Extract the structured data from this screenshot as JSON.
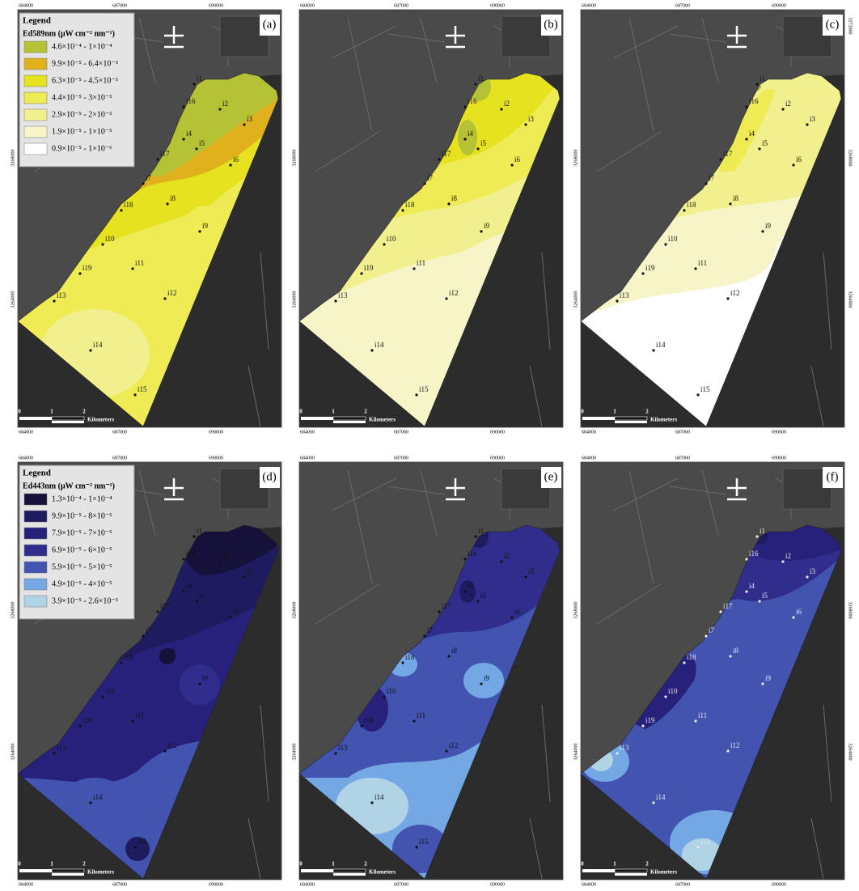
{
  "panels": [
    {
      "label": "(a)",
      "legend": {
        "heading": "Legend",
        "title": "Ed589nm  (μW cm⁻² nm⁻¹)",
        "entries": [
          {
            "label": "4.6×10⁻⁴ - 1×10⁻⁴",
            "color": "#b6c236"
          },
          {
            "label": "9.9×10⁻⁵ - 6.4×10⁻⁵",
            "color": "#e1b11d"
          },
          {
            "label": "6.3×10⁻⁵ - 4.5×10⁻⁵",
            "color": "#e6e21f"
          },
          {
            "label": "4.4×10⁻⁵ - 3×10⁻⁵",
            "color": "#eeeb55"
          },
          {
            "label": "2.9×10⁻⁵ - 2×10⁻⁵",
            "color": "#f2f08e"
          },
          {
            "label": "1.9×10⁻⁵ - 1×10⁻⁵",
            "color": "#f7f5c8"
          },
          {
            "label": "0.9×10⁻⁵ - 1×10⁻⁶",
            "color": "#ffffff"
          }
        ]
      }
    },
    {
      "label": "(b)"
    },
    {
      "label": "(c)"
    },
    {
      "label": "(d)",
      "legend": {
        "heading": "Legend",
        "title": "Ed443nm  (μW cm⁻² nm⁻¹)",
        "entries": [
          {
            "label": "1.3×10⁻⁴ - 1×10⁻⁴",
            "color": "#15113a"
          },
          {
            "label": "9.9×10⁻⁵ - 8×10⁻⁵",
            "color": "#1f1b60"
          },
          {
            "label": "7.9×10⁻⁵ - 7×10⁻⁵",
            "color": "#27217c"
          },
          {
            "label": "6.9×10⁻⁵ - 6×10⁻⁵",
            "color": "#302d8c"
          },
          {
            "label": "5.9×10⁻⁵ - 5×10⁻⁵",
            "color": "#4254b0"
          },
          {
            "label": "4.9×10⁻⁵ - 4×10⁻⁵",
            "color": "#73a8e4"
          },
          {
            "label": "3.9×10⁻⁵ - 2.6×10⁻⁵",
            "color": "#b0d3e6"
          }
        ]
      }
    },
    {
      "label": "(e)"
    },
    {
      "label": "(f)"
    }
  ],
  "stations": [
    "i1",
    "i16",
    "i2",
    "i3",
    "i4",
    "i5",
    "i6",
    "i17",
    "i7",
    "i8",
    "i18",
    "i9",
    "i10",
    "i19",
    "i11",
    "i13",
    "i12",
    "i14",
    "i15"
  ],
  "x_tick_labels": [
    "684000",
    "687000",
    "690000"
  ],
  "y_tick_labels": [
    "3272000",
    "3268000",
    "3264000"
  ],
  "scale_bar": {
    "labels": [
      "0",
      "1",
      "2"
    ],
    "unit": "Kilometers"
  }
}
